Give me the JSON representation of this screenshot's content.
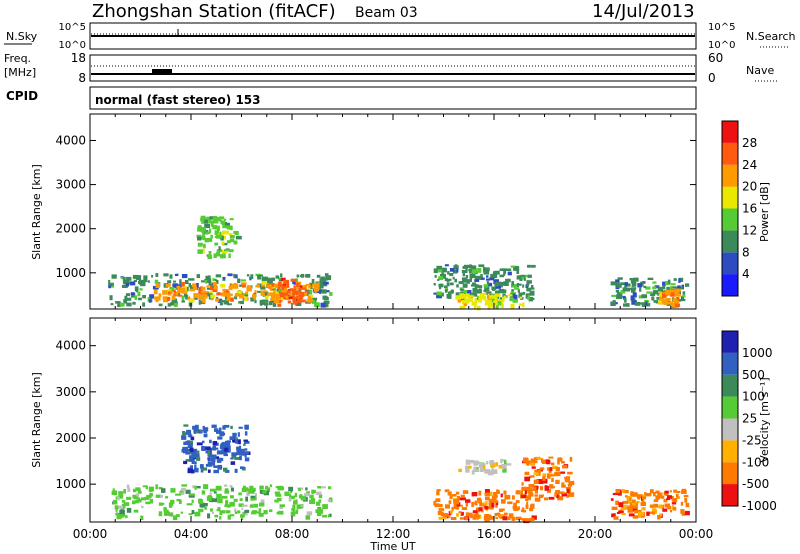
{
  "header": {
    "title": "Zhongshan Station (fitACF)",
    "beam": "Beam 03",
    "date": "14/Jul/2013"
  },
  "strip1": {
    "left_label": "N.Sky",
    "left_ticks": [
      "10^5",
      "10^0"
    ],
    "right_ticks": [
      "10^5",
      "10^0"
    ],
    "right_label": "N.Search"
  },
  "strip2": {
    "left_label_line1": "Freq.",
    "left_label_line2": "[MHz]",
    "left_ticks": [
      "18",
      "8"
    ],
    "right_ticks": [
      "60",
      "0"
    ],
    "right_label": "Nave"
  },
  "cpid": {
    "label": "CPID",
    "text": "normal (fast stereo) 153"
  },
  "colors": {
    "power": [
      "#1a1aff",
      "#2c4cbf",
      "#3a8a5a",
      "#55cc33",
      "#e8e800",
      "#ff9a00",
      "#ff5a10",
      "#ee1111"
    ],
    "velocity": [
      "#2020b0",
      "#3060c0",
      "#3a8a5a",
      "#55cc33",
      "#c0c0c0",
      "#ffb000",
      "#ff7a00",
      "#ee1111"
    ]
  },
  "chart_data": [
    {
      "type": "heatmap",
      "title": "",
      "xlabel": "",
      "ylabel": "Slant Range [km]",
      "xlim": [
        "00:00",
        "00:00"
      ],
      "ylim": [
        180,
        4600
      ],
      "yticks": [
        1000,
        2000,
        3000,
        4000
      ],
      "xticks": [
        "00:00",
        "04:00",
        "08:00",
        "12:00",
        "16:00",
        "20:00",
        "00:00"
      ],
      "colorbar": {
        "label": "Power [dB]",
        "ticks": [
          4,
          8,
          12,
          16,
          20,
          24,
          28
        ]
      },
      "regions": [
        {
          "t_start": 0.7,
          "t_end": 9.5,
          "range_min": 300,
          "range_max": 1000,
          "value": 12
        },
        {
          "t_start": 2.5,
          "t_end": 9.0,
          "range_min": 400,
          "range_max": 800,
          "value": 22
        },
        {
          "t_start": 4.2,
          "t_end": 5.8,
          "range_min": 1400,
          "range_max": 2300,
          "value": 16
        },
        {
          "t_start": 7.4,
          "t_end": 8.4,
          "range_min": 300,
          "range_max": 900,
          "value": 26
        },
        {
          "t_start": 13.6,
          "t_end": 17.5,
          "range_min": 400,
          "range_max": 1200,
          "value": 10
        },
        {
          "t_start": 14.2,
          "t_end": 17.2,
          "range_min": 250,
          "range_max": 550,
          "value": 18
        },
        {
          "t_start": 20.6,
          "t_end": 23.6,
          "range_min": 300,
          "range_max": 900,
          "value": 12
        },
        {
          "t_start": 22.5,
          "t_end": 23.3,
          "range_min": 300,
          "range_max": 650,
          "value": 24
        }
      ]
    },
    {
      "type": "heatmap",
      "title": "",
      "xlabel": "Time UT",
      "ylabel": "Slant Range [km]",
      "xlim": [
        "00:00",
        "00:00"
      ],
      "ylim": [
        180,
        4600
      ],
      "yticks": [
        1000,
        2000,
        3000,
        4000
      ],
      "xticks": [
        "00:00",
        "04:00",
        "08:00",
        "12:00",
        "16:00",
        "20:00",
        "00:00"
      ],
      "colorbar": {
        "label": "Velocity [m s⁻¹]",
        "ticks": [
          1000,
          500,
          100,
          25,
          -25,
          -100,
          -500,
          -1000
        ]
      },
      "regions": [
        {
          "t_start": 0.7,
          "t_end": 9.5,
          "range_min": 300,
          "range_max": 1000,
          "value": 60
        },
        {
          "t_start": 3.6,
          "t_end": 6.2,
          "range_min": 1300,
          "range_max": 2300,
          "value": 600
        },
        {
          "t_start": 13.6,
          "t_end": 17.5,
          "range_min": 250,
          "range_max": 900,
          "value": -150
        },
        {
          "t_start": 14.5,
          "t_end": 16.5,
          "range_min": 1300,
          "range_max": 1550,
          "value": 0
        },
        {
          "t_start": 17.0,
          "t_end": 19.0,
          "range_min": 700,
          "range_max": 1600,
          "value": -300
        },
        {
          "t_start": 20.6,
          "t_end": 23.6,
          "range_min": 300,
          "range_max": 900,
          "value": -200
        }
      ]
    }
  ]
}
